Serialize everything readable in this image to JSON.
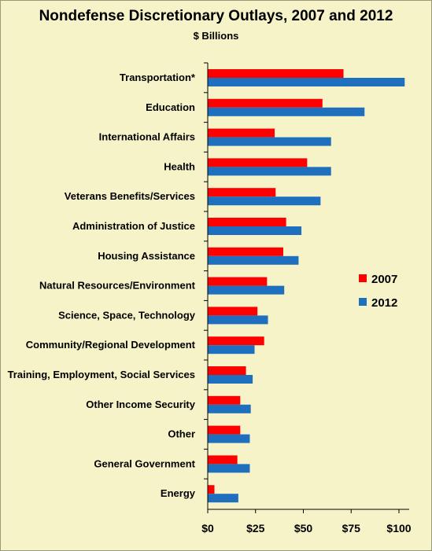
{
  "chart_data": {
    "type": "bar",
    "orientation": "horizontal",
    "title": "Nondefense Discretionary Outlays, 2007 and 2012",
    "subtitle": "$ Billions",
    "categories": [
      "Transportation*",
      "Education",
      "International Affairs",
      "Health",
      "Veterans Benefits/Services",
      "Administration of Justice",
      "Housing Assistance",
      "Natural Resources/Environment",
      "Science, Space, Technology",
      "Community/Regional Development",
      "Training, Employment, Social Services",
      "Other Income Security",
      "Other",
      "General Government",
      "Energy"
    ],
    "series": [
      {
        "name": "2007",
        "color": "#ff0000",
        "values": [
          71,
          60,
          35,
          52,
          35.5,
          41,
          39.5,
          31,
          26,
          29.5,
          20,
          17,
          17,
          15.5,
          3.5
        ]
      },
      {
        "name": "2012",
        "color": "#1f6fbf",
        "values": [
          103,
          82,
          64.5,
          64.5,
          59,
          49,
          47.5,
          40,
          31.5,
          24.5,
          23.5,
          22.5,
          22,
          22,
          16
        ]
      }
    ],
    "xaxis": {
      "min": 0,
      "max": 100,
      "ticks": [
        0,
        25,
        50,
        75,
        100
      ],
      "tick_labels": [
        "$0",
        "$25",
        "$50",
        "$75",
        "$100"
      ]
    },
    "grid": false,
    "legend_position": "right-middle"
  }
}
